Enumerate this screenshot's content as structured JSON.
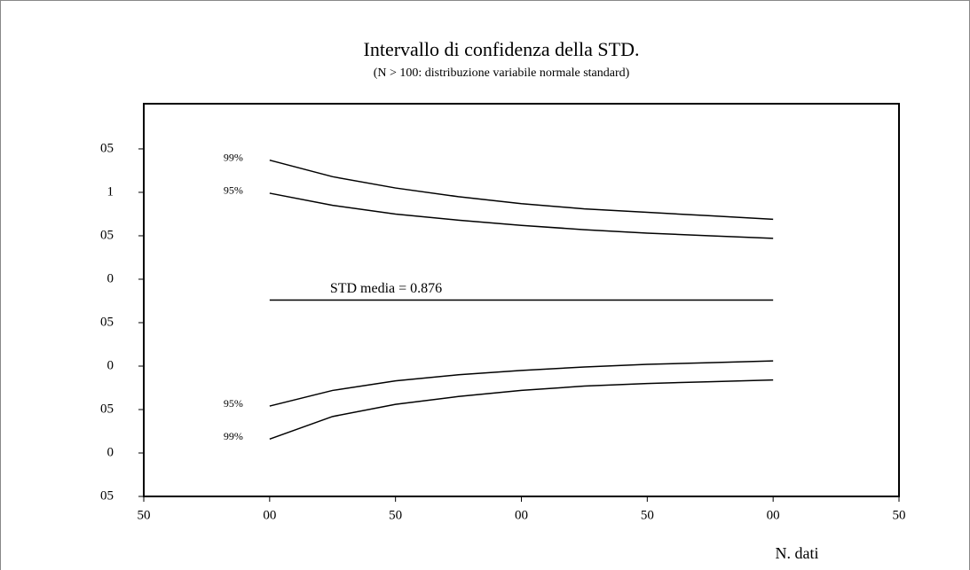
{
  "chart_data": {
    "type": "line",
    "title": "Intervallo di confidenza della STD.",
    "subtitle": "(N > 100: distribuzione variabile normale standard)",
    "x_label": "N. dati",
    "x": [
      100,
      125,
      150,
      175,
      200,
      225,
      250,
      275,
      300
    ],
    "series": [
      {
        "name": "99%",
        "color": "#000000",
        "values": [
          1.037,
          1.018,
          1.005,
          0.995,
          0.987,
          0.981,
          0.977,
          0.973,
          0.969
        ]
      },
      {
        "name": "95%",
        "color": "#000000",
        "values": [
          0.999,
          0.985,
          0.975,
          0.968,
          0.962,
          0.957,
          0.953,
          0.95,
          0.947
        ]
      },
      {
        "name": "STD media = 0.876",
        "color": "#000000",
        "values": [
          0.876,
          0.876,
          0.876,
          0.876,
          0.876,
          0.876,
          0.876,
          0.876,
          0.876
        ]
      },
      {
        "name": "95%",
        "color": "#000000",
        "values": [
          0.754,
          0.772,
          0.783,
          0.79,
          0.795,
          0.799,
          0.802,
          0.804,
          0.806
        ]
      },
      {
        "name": "99%",
        "color": "#000000",
        "values": [
          0.716,
          0.742,
          0.756,
          0.765,
          0.772,
          0.777,
          0.78,
          0.782,
          0.784
        ]
      }
    ],
    "xlim": [
      50,
      350
    ],
    "xticks": [
      {
        "value": 50,
        "label": "50"
      },
      {
        "value": 100,
        "label": "00"
      },
      {
        "value": 150,
        "label": "50"
      },
      {
        "value": 200,
        "label": "00"
      },
      {
        "value": 250,
        "label": "50"
      },
      {
        "value": 300,
        "label": "00"
      },
      {
        "value": 350,
        "label": "50"
      }
    ],
    "ylim": [
      0.65,
      1.102
    ],
    "yticks": [
      {
        "value": 0.65,
        "label": "05"
      },
      {
        "value": 0.7,
        "label": "0"
      },
      {
        "value": 0.75,
        "label": "05"
      },
      {
        "value": 0.8,
        "label": "0"
      },
      {
        "value": 0.85,
        "label": "05"
      },
      {
        "value": 0.9,
        "label": "0"
      },
      {
        "value": 0.95,
        "label": "05"
      },
      1,
      {
        "value": 1.05,
        "label": "05"
      }
    ],
    "grid": false
  }
}
